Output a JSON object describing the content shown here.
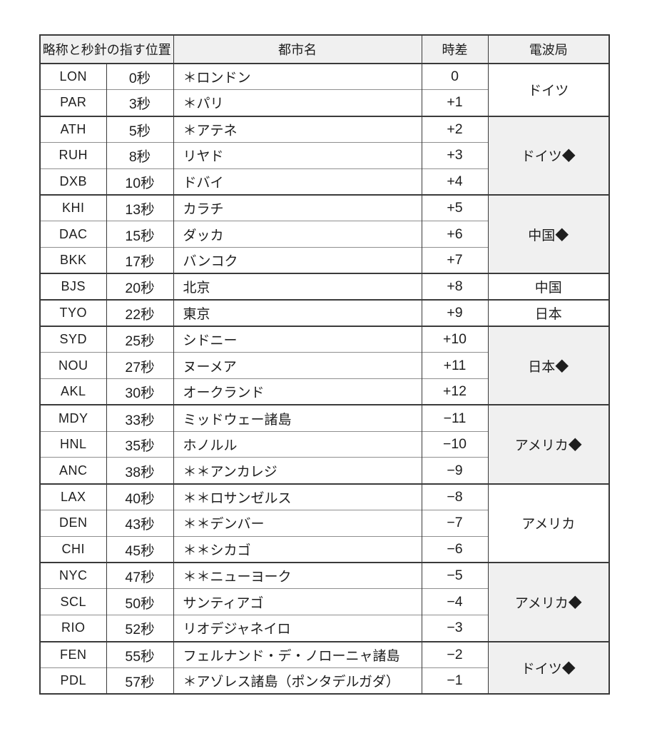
{
  "colors": {
    "page_bg": "#ffffff",
    "header_bg": "#f0f0f0",
    "shaded_station_bg": "#f0f0f0",
    "border_strong": "#3a3a3a",
    "border_light": "#8f8f8f",
    "text": "#1e1e1e"
  },
  "table": {
    "headers": {
      "abbr_position": "略称と秒針の指す位置",
      "city": "都市名",
      "offset": "時差",
      "station": "電波局"
    },
    "groups": [
      {
        "label": "ドイツ",
        "span": 2,
        "shaded": false
      },
      {
        "label": "ドイツ◆",
        "span": 3,
        "shaded": true
      },
      {
        "label": "中国◆",
        "span": 3,
        "shaded": true
      },
      {
        "label": "中国",
        "span": 1,
        "shaded": false
      },
      {
        "label": "日本",
        "span": 1,
        "shaded": false
      },
      {
        "label": "日本◆",
        "span": 3,
        "shaded": true
      },
      {
        "label": "アメリカ◆",
        "span": 3,
        "shaded": true
      },
      {
        "label": "アメリカ",
        "span": 3,
        "shaded": false
      },
      {
        "label": "アメリカ◆",
        "span": 3,
        "shaded": true
      },
      {
        "label": "ドイツ◆",
        "span": 2,
        "shaded": true
      }
    ],
    "rows": [
      {
        "abbr": "LON",
        "sec": "0秒",
        "city": "＊ロンドン",
        "offset": "0"
      },
      {
        "abbr": "PAR",
        "sec": "3秒",
        "city": "＊パリ",
        "offset": "+1"
      },
      {
        "abbr": "ATH",
        "sec": "5秒",
        "city": "＊アテネ",
        "offset": "+2"
      },
      {
        "abbr": "RUH",
        "sec": "8秒",
        "city": "リヤド",
        "offset": "+3"
      },
      {
        "abbr": "DXB",
        "sec": "10秒",
        "city": "ドバイ",
        "offset": "+4"
      },
      {
        "abbr": "KHI",
        "sec": "13秒",
        "city": "カラチ",
        "offset": "+5"
      },
      {
        "abbr": "DAC",
        "sec": "15秒",
        "city": "ダッカ",
        "offset": "+6"
      },
      {
        "abbr": "BKK",
        "sec": "17秒",
        "city": "バンコク",
        "offset": "+7"
      },
      {
        "abbr": "BJS",
        "sec": "20秒",
        "city": "北京",
        "offset": "+8"
      },
      {
        "abbr": "TYO",
        "sec": "22秒",
        "city": "東京",
        "offset": "+9"
      },
      {
        "abbr": "SYD",
        "sec": "25秒",
        "city": "シドニー",
        "offset": "+10"
      },
      {
        "abbr": "NOU",
        "sec": "27秒",
        "city": "ヌーメア",
        "offset": "+11"
      },
      {
        "abbr": "AKL",
        "sec": "30秒",
        "city": "オークランド",
        "offset": "+12"
      },
      {
        "abbr": "MDY",
        "sec": "33秒",
        "city": "ミッドウェー諸島",
        "offset": "−11"
      },
      {
        "abbr": "HNL",
        "sec": "35秒",
        "city": "ホノルル",
        "offset": "−10"
      },
      {
        "abbr": "ANC",
        "sec": "38秒",
        "city": "＊＊アンカレジ",
        "offset": "−9"
      },
      {
        "abbr": "LAX",
        "sec": "40秒",
        "city": "＊＊ロサンゼルス",
        "offset": "−8"
      },
      {
        "abbr": "DEN",
        "sec": "43秒",
        "city": "＊＊デンバー",
        "offset": "−7"
      },
      {
        "abbr": "CHI",
        "sec": "45秒",
        "city": "＊＊シカゴ",
        "offset": "−6"
      },
      {
        "abbr": "NYC",
        "sec": "47秒",
        "city": "＊＊ニューヨーク",
        "offset": "−5"
      },
      {
        "abbr": "SCL",
        "sec": "50秒",
        "city": "サンティアゴ",
        "offset": "−4"
      },
      {
        "abbr": "RIO",
        "sec": "52秒",
        "city": "リオデジャネイロ",
        "offset": "−3"
      },
      {
        "abbr": "FEN",
        "sec": "55秒",
        "city": "フェルナンド・デ・ノローニャ諸島",
        "offset": "−2"
      },
      {
        "abbr": "PDL",
        "sec": "57秒",
        "city": "＊アゾレス諸島（ポンタデルガダ）",
        "offset": "−1"
      }
    ]
  }
}
